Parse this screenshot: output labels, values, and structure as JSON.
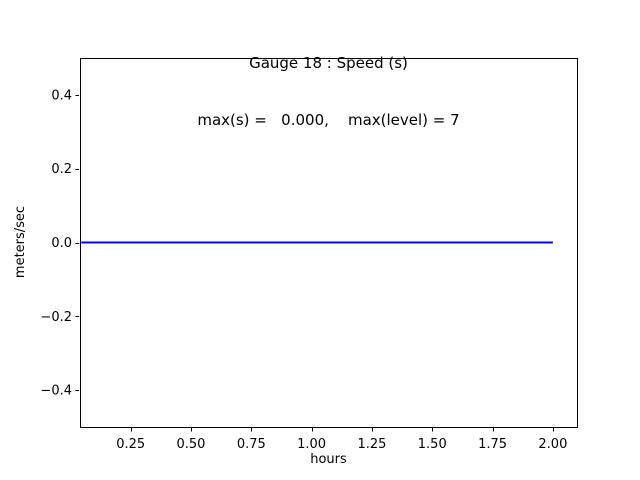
{
  "title": {
    "line1": "Gauge 18 : Speed (s)",
    "line2": "max(s) =   0.000,    max(level) = 7"
  },
  "axis": {
    "xlabel": "hours",
    "ylabel": "meters/sec"
  },
  "chart_data": {
    "type": "line",
    "title": "Gauge 18 : Speed (s)",
    "subtitle": "max(s) =   0.000,    max(level) = 7",
    "xlabel": "hours",
    "ylabel": "meters/sec",
    "xlim": [
      0.04,
      2.1
    ],
    "ylim": [
      -0.5,
      0.5
    ],
    "x_ticks": [
      0.25,
      0.5,
      0.75,
      1.0,
      1.25,
      1.5,
      1.75,
      2.0
    ],
    "x_tick_labels": [
      "0.25",
      "0.50",
      "0.75",
      "1.00",
      "1.25",
      "1.50",
      "1.75",
      "2.00"
    ],
    "y_ticks": [
      0.4,
      0.2,
      0.0,
      -0.2,
      -0.4
    ],
    "y_tick_labels": [
      "0.4",
      "0.2",
      "0.0",
      "−0.2",
      "−0.4"
    ],
    "grid": false,
    "legend": null,
    "series": [
      {
        "name": "Speed (s)",
        "color": "#0000ff",
        "width": 2,
        "x": [
          0.045,
          2.0
        ],
        "y": [
          0.0,
          0.0
        ]
      }
    ],
    "stats": {
      "max_s": "0.000",
      "max_level": "7"
    }
  },
  "colors": {
    "background": "#ffffff",
    "spine": "#000000",
    "text": "#000000",
    "line": "#0000ff"
  }
}
